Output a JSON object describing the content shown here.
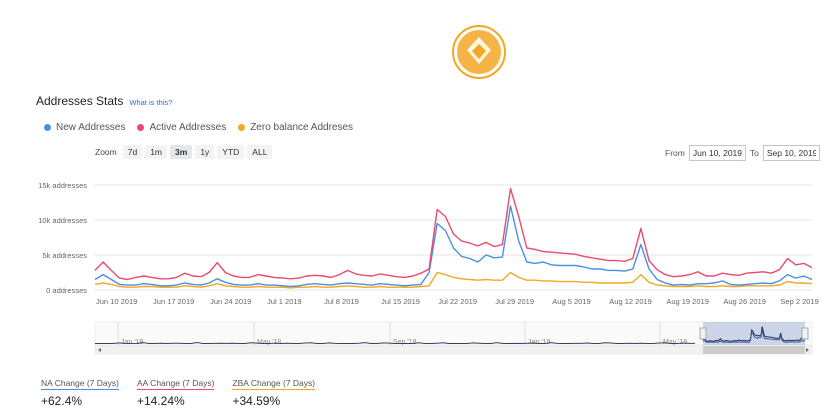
{
  "stats": {
    "title": "Addresses Stats",
    "what_link": "What is this?"
  },
  "legend": [
    {
      "label": "New Addresses",
      "color": "#4a90e2"
    },
    {
      "label": "Active Addresses",
      "color": "#e84b6e"
    },
    {
      "label": "Zero balance Addreses",
      "color": "#f5a623"
    }
  ],
  "zoom": {
    "label": "Zoom",
    "buttons": [
      "7d",
      "1m",
      "3m",
      "1y",
      "YTD",
      "ALL"
    ],
    "active": "3m"
  },
  "range": {
    "from_label": "From",
    "from_value": "Jun 10, 2019",
    "to_label": "To",
    "to_value": "Sep 10, 2019"
  },
  "colors": {
    "new": "#4a90e2",
    "active": "#e84b6e",
    "zero": "#f5a623",
    "accent_logo": "#f5a623"
  },
  "chart_data": {
    "type": "line",
    "title": "",
    "xlabel": "",
    "ylabel": "",
    "ylim": [
      0,
      15000
    ],
    "y_ticks": [
      {
        "value": 0,
        "label": "0 addresses"
      },
      {
        "value": 5000,
        "label": "5k addresses"
      },
      {
        "value": 10000,
        "label": "10k addresses"
      },
      {
        "value": 15000,
        "label": "15k addresses"
      }
    ],
    "x_ticks": [
      {
        "day": 0,
        "label": "Jun 10 2019"
      },
      {
        "day": 7,
        "label": "Jun 17 2019"
      },
      {
        "day": 14,
        "label": "Jun 24 2019"
      },
      {
        "day": 21,
        "label": "Jul 1 2019"
      },
      {
        "day": 28,
        "label": "Jul 8 2019"
      },
      {
        "day": 35,
        "label": "Jul 15 2019"
      },
      {
        "day": 42,
        "label": "Jul 22 2019"
      },
      {
        "day": 49,
        "label": "Jul 29 2019"
      },
      {
        "day": 56,
        "label": "Aug 5 2019"
      },
      {
        "day": 63,
        "label": "Aug 12 2019"
      },
      {
        "day": 70,
        "label": "Aug 19 2019"
      },
      {
        "day": 77,
        "label": "Aug 26 2019"
      },
      {
        "day": 84,
        "label": "Sep 2 2019"
      }
    ],
    "grid": true,
    "legend_position": "top-left",
    "series": [
      {
        "name": "New Addresses",
        "values": [
          1500,
          2200,
          1500,
          800,
          700,
          700,
          900,
          800,
          600,
          600,
          700,
          1000,
          800,
          700,
          1000,
          1600,
          1100,
          800,
          700,
          700,
          900,
          700,
          700,
          600,
          500,
          600,
          800,
          900,
          800,
          700,
          900,
          1000,
          900,
          800,
          700,
          900,
          800,
          700,
          600,
          700,
          800,
          2500,
          9500,
          8500,
          6000,
          4800,
          4500,
          4000,
          5000,
          4600,
          4700,
          12000,
          7000,
          4000,
          3800,
          4000,
          3600,
          3500,
          3500,
          3500,
          3300,
          3000,
          3000,
          2800,
          2800,
          2700,
          3000,
          6500,
          3000,
          1500,
          1000,
          700,
          800,
          700,
          900,
          900,
          1000,
          1300,
          800,
          700,
          800,
          900,
          1000,
          900,
          1300,
          2200,
          1700,
          2000,
          1500
        ],
        "color": "#4a90e2"
      },
      {
        "name": "Active Addresses",
        "values": [
          2800,
          4000,
          2800,
          1700,
          1500,
          1800,
          2000,
          1800,
          1600,
          1600,
          1800,
          2400,
          2000,
          1900,
          2500,
          3900,
          2500,
          2000,
          1800,
          1800,
          2200,
          2000,
          1800,
          1700,
          1600,
          1700,
          2000,
          2100,
          2000,
          1800,
          2200,
          2800,
          2300,
          2100,
          2000,
          2300,
          2100,
          1900,
          1800,
          2000,
          2400,
          3000,
          11500,
          10500,
          8000,
          7000,
          6700,
          6300,
          6800,
          6200,
          6500,
          14500,
          10500,
          6000,
          5800,
          5500,
          5400,
          5300,
          5200,
          5100,
          4800,
          4600,
          4400,
          4200,
          4200,
          4100,
          4500,
          8800,
          4200,
          2900,
          2200,
          1900,
          2000,
          2200,
          2600,
          2000,
          2000,
          2400,
          2200,
          2100,
          2400,
          2500,
          2600,
          2400,
          2900,
          4500,
          3600,
          3800,
          3200
        ],
        "color": "#e84b6e"
      },
      {
        "name": "Zero balance Addreses",
        "values": [
          800,
          1000,
          800,
          500,
          400,
          400,
          500,
          500,
          400,
          400,
          400,
          600,
          500,
          400,
          600,
          900,
          600,
          500,
          400,
          400,
          500,
          400,
          400,
          400,
          300,
          400,
          400,
          500,
          400,
          400,
          500,
          600,
          500,
          400,
          400,
          500,
          400,
          400,
          400,
          400,
          500,
          600,
          2500,
          2200,
          1800,
          1600,
          1500,
          1400,
          1500,
          1400,
          1400,
          2500,
          1800,
          1400,
          1400,
          1300,
          1300,
          1200,
          1200,
          1200,
          1100,
          1100,
          1000,
          1000,
          1000,
          1000,
          1100,
          2200,
          1100,
          700,
          600,
          500,
          500,
          500,
          600,
          500,
          500,
          600,
          500,
          500,
          600,
          600,
          600,
          600,
          700,
          1200,
          1000,
          1000,
          900
        ],
        "color": "#f5a623"
      }
    ],
    "navigator": {
      "labels": [
        "Jan '18",
        "May '18",
        "Sep '18",
        "Jan '19",
        "May '19"
      ]
    }
  },
  "changes": [
    {
      "label": "NA Change (7 Days)",
      "value": "+62.4%",
      "color": "#4a90e2"
    },
    {
      "label": "AA Change (7 Days)",
      "value": "+14.24%",
      "color": "#e84b6e"
    },
    {
      "label": "ZBA Change (7 Days)",
      "value": "+34.59%",
      "color": "#f5a623"
    }
  ]
}
